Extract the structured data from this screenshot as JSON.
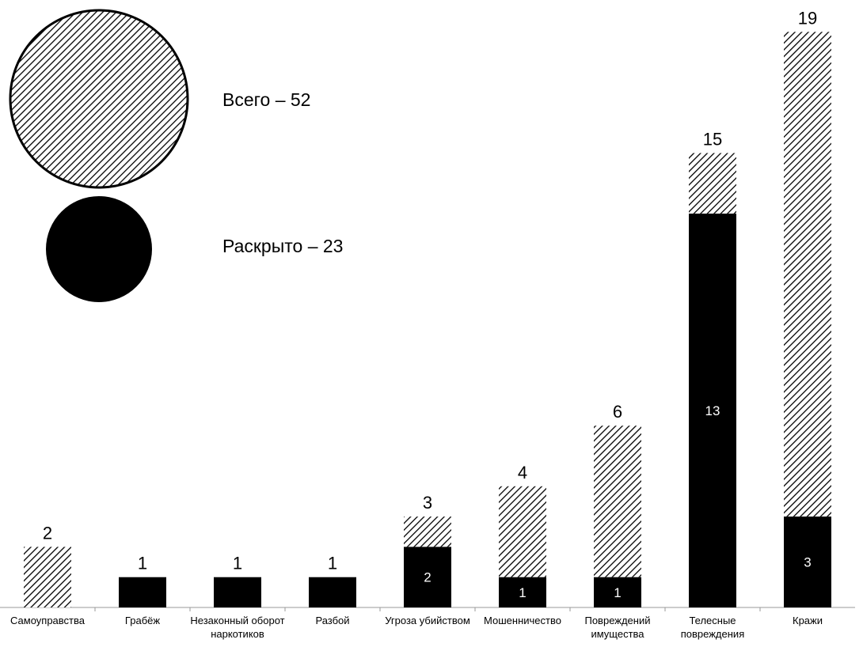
{
  "chart_data": {
    "type": "bar",
    "stacked": true,
    "grid": false,
    "legend_position": "top-left",
    "categories": [
      [
        "Самоуправства"
      ],
      [
        "Грабёж"
      ],
      [
        "Незаконный оборот",
        "наркотиков"
      ],
      [
        "Разбой"
      ],
      [
        "Угроза убийством"
      ],
      [
        "Мошенничество"
      ],
      [
        "Повреждений",
        "имущества"
      ],
      [
        "Телесные",
        "повреждения"
      ],
      [
        "Кражи"
      ]
    ],
    "totals": [
      2,
      1,
      1,
      1,
      3,
      4,
      6,
      15,
      19
    ],
    "solved": [
      0,
      1,
      1,
      1,
      2,
      1,
      1,
      13,
      3
    ],
    "show_solved_label": [
      false,
      false,
      false,
      false,
      true,
      true,
      true,
      true,
      true
    ],
    "ylim": [
      0,
      20
    ],
    "legend": [
      {
        "text": "Всего – 52",
        "style": "hatched"
      },
      {
        "text": "Раскрыто – 23",
        "style": "solid"
      }
    ],
    "colors": {
      "solid": "#000000",
      "hatch": "#000000",
      "background": "#ffffff"
    }
  }
}
